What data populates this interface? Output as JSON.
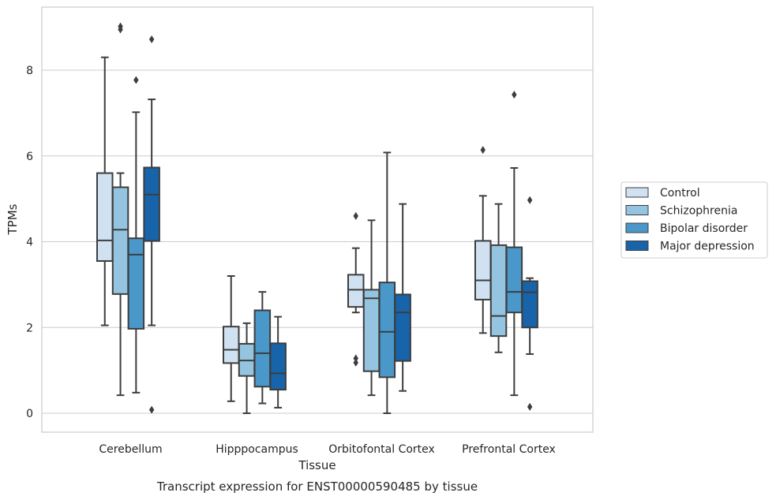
{
  "chart_data": {
    "type": "box",
    "title": "",
    "xlabel": "Tissue",
    "ylabel": "TPMs",
    "caption": "Transcript expression for ENST00000590485 by tissue",
    "ylim": [
      -0.4,
      9.5
    ],
    "yticks": [
      0,
      2,
      4,
      6,
      8
    ],
    "grid": "horizontal",
    "legend_position": "right",
    "categories": [
      "Cerebellum",
      "Hipppocampus",
      "Orbitofontal Cortex",
      "Prefrontal Cortex"
    ],
    "series": [
      {
        "name": "Control",
        "color": "#d0e1f2",
        "boxes": [
          {
            "whisker_low": 2.05,
            "q1": 3.55,
            "median": 4.03,
            "q3": 5.6,
            "whisker_high": 8.3,
            "outliers": []
          },
          {
            "whisker_low": 0.28,
            "q1": 1.17,
            "median": 1.48,
            "q3": 2.02,
            "whisker_high": 3.2,
            "outliers": []
          },
          {
            "whisker_low": 2.35,
            "q1": 2.48,
            "median": 2.88,
            "q3": 3.23,
            "whisker_high": 3.85,
            "outliers": [
              4.6,
              1.28,
              1.18
            ]
          },
          {
            "whisker_low": 1.87,
            "q1": 2.65,
            "median": 3.1,
            "q3": 4.02,
            "whisker_high": 5.07,
            "outliers": [
              6.14
            ]
          }
        ]
      },
      {
        "name": "Schizophrenia",
        "color": "#94c4df",
        "boxes": [
          {
            "whisker_low": 0.42,
            "q1": 2.78,
            "median": 4.28,
            "q3": 5.27,
            "whisker_high": 5.6,
            "outliers": [
              9.02,
              8.95
            ]
          },
          {
            "whisker_low": 0.0,
            "q1": 0.87,
            "median": 1.23,
            "q3": 1.62,
            "whisker_high": 2.1,
            "outliers": []
          },
          {
            "whisker_low": 0.42,
            "q1": 0.98,
            "median": 2.68,
            "q3": 2.88,
            "whisker_high": 4.5,
            "outliers": []
          },
          {
            "whisker_low": 1.42,
            "q1": 1.8,
            "median": 2.27,
            "q3": 3.92,
            "whisker_high": 4.88,
            "outliers": []
          }
        ]
      },
      {
        "name": "Bipolar disorder",
        "color": "#4a98c9",
        "boxes": [
          {
            "whisker_low": 0.48,
            "q1": 1.97,
            "median": 3.7,
            "q3": 4.08,
            "whisker_high": 7.02,
            "outliers": [
              7.77
            ]
          },
          {
            "whisker_low": 0.23,
            "q1": 0.62,
            "median": 1.4,
            "q3": 2.4,
            "whisker_high": 2.83,
            "outliers": []
          },
          {
            "whisker_low": 0.0,
            "q1": 0.84,
            "median": 1.9,
            "q3": 3.05,
            "whisker_high": 6.08,
            "outliers": []
          },
          {
            "whisker_low": 0.42,
            "q1": 2.35,
            "median": 2.83,
            "q3": 3.87,
            "whisker_high": 5.72,
            "outliers": [
              7.43
            ]
          }
        ]
      },
      {
        "name": "Major depression",
        "color": "#1764ab",
        "boxes": [
          {
            "whisker_low": 2.05,
            "q1": 4.02,
            "median": 5.1,
            "q3": 5.73,
            "whisker_high": 7.32,
            "outliers": [
              8.72,
              0.08
            ]
          },
          {
            "whisker_low": 0.13,
            "q1": 0.55,
            "median": 0.93,
            "q3": 1.63,
            "whisker_high": 2.25,
            "outliers": []
          },
          {
            "whisker_low": 0.52,
            "q1": 1.22,
            "median": 2.35,
            "q3": 2.77,
            "whisker_high": 4.88,
            "outliers": []
          },
          {
            "whisker_low": 1.38,
            "q1": 2.0,
            "median": 2.82,
            "q3": 3.08,
            "whisker_high": 3.15,
            "outliers": [
              4.97,
              0.15
            ]
          }
        ]
      }
    ]
  }
}
